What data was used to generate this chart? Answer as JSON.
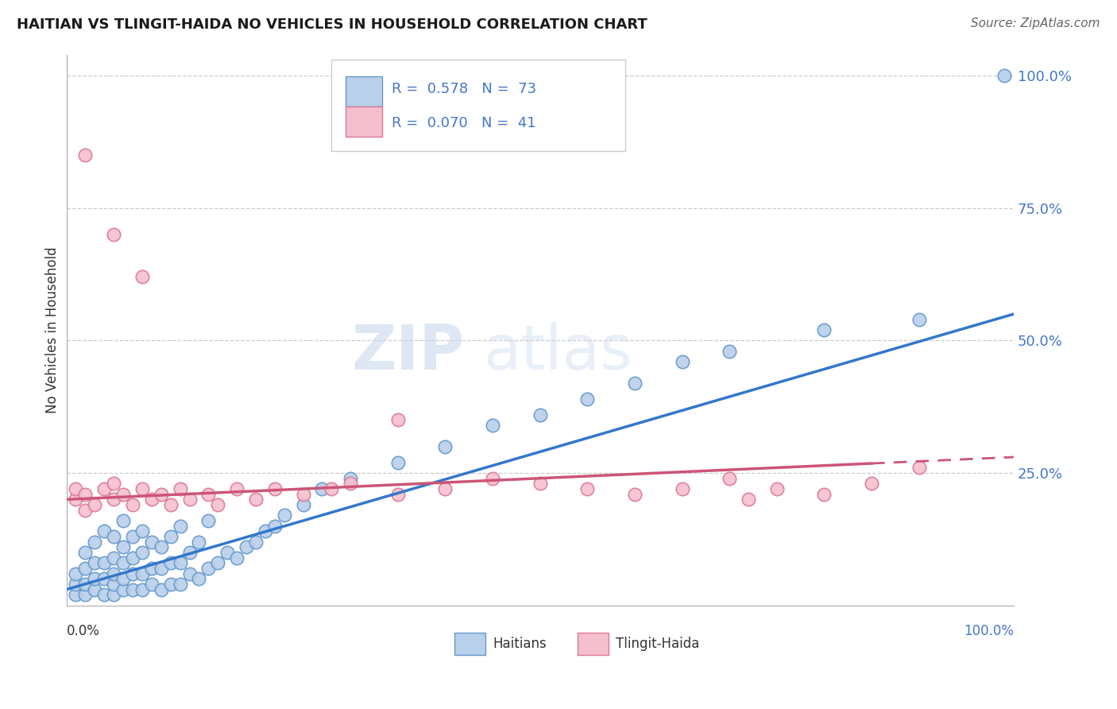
{
  "title": "HAITIAN VS TLINGIT-HAIDA NO VEHICLES IN HOUSEHOLD CORRELATION CHART",
  "source": "Source: ZipAtlas.com",
  "ylabel": "No Vehicles in Household",
  "haitian_color": "#b8d0ea",
  "haitian_edge_color": "#6699cc",
  "tlingit_color": "#f5c0ce",
  "tlingit_edge_color": "#dd7799",
  "haitian_line_color": "#3377cc",
  "tlingit_line_color": "#cc5577",
  "legend_R_haitian": "0.578",
  "legend_N_haitian": "73",
  "legend_R_tlingit": "0.070",
  "legend_N_tlingit": "41",
  "watermark_zip": "ZIP",
  "watermark_atlas": "atlas",
  "xlim": [
    0,
    100
  ],
  "ylim": [
    0,
    104
  ],
  "grid_yticks": [
    25,
    50,
    75,
    100
  ],
  "grid_color": "#cccccc",
  "axis_label_color": "#4477cc",
  "title_color": "#1a1a1a",
  "ylabel_color": "#333333",
  "haitian_line_y0": 3,
  "haitian_line_y100": 55,
  "tlingit_line_y0": 20,
  "tlingit_line_y100": 28,
  "tlingit_solid_xmax": 85,
  "haitian_x": [
    1,
    1,
    1,
    2,
    2,
    2,
    2,
    3,
    3,
    3,
    3,
    4,
    4,
    4,
    4,
    5,
    5,
    5,
    5,
    5,
    6,
    6,
    6,
    6,
    6,
    7,
    7,
    7,
    7,
    8,
    8,
    8,
    8,
    9,
    9,
    9,
    10,
    10,
    10,
    11,
    11,
    11,
    12,
    12,
    12,
    13,
    13,
    14,
    14,
    15,
    15,
    16,
    17,
    18,
    19,
    20,
    21,
    22,
    23,
    25,
    27,
    30,
    35,
    40,
    45,
    50,
    55,
    60,
    65,
    70,
    80,
    90,
    99
  ],
  "haitian_y": [
    2,
    4,
    6,
    2,
    4,
    7,
    10,
    3,
    5,
    8,
    12,
    2,
    5,
    8,
    14,
    2,
    4,
    6,
    9,
    13,
    3,
    5,
    8,
    11,
    16,
    3,
    6,
    9,
    13,
    3,
    6,
    10,
    14,
    4,
    7,
    12,
    3,
    7,
    11,
    4,
    8,
    13,
    4,
    8,
    15,
    6,
    10,
    5,
    12,
    7,
    16,
    8,
    10,
    9,
    11,
    12,
    14,
    15,
    17,
    19,
    22,
    24,
    27,
    30,
    34,
    36,
    39,
    42,
    46,
    48,
    52,
    54,
    100
  ],
  "tlingit_x": [
    1,
    1,
    2,
    2,
    3,
    4,
    5,
    5,
    6,
    7,
    8,
    9,
    10,
    11,
    12,
    13,
    15,
    16,
    18,
    20,
    22,
    25,
    28,
    30,
    35,
    40,
    45,
    50,
    55,
    60,
    65,
    70,
    72,
    75,
    80,
    85,
    90,
    2,
    5,
    8,
    35
  ],
  "tlingit_y": [
    20,
    22,
    18,
    21,
    19,
    22,
    20,
    23,
    21,
    19,
    22,
    20,
    21,
    19,
    22,
    20,
    21,
    19,
    22,
    20,
    22,
    21,
    22,
    23,
    21,
    22,
    24,
    23,
    22,
    21,
    22,
    24,
    20,
    22,
    21,
    23,
    26,
    85,
    70,
    62,
    35
  ]
}
